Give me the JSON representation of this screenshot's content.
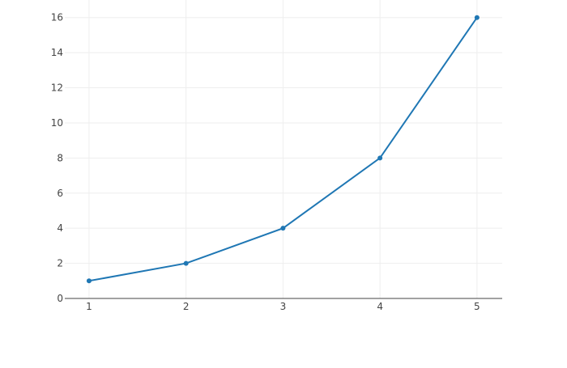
{
  "chart_data": {
    "type": "line",
    "x": [
      1,
      2,
      3,
      4,
      5
    ],
    "series": [
      {
        "values": [
          1,
          2,
          4,
          8,
          16
        ],
        "color": "#1f77b4",
        "mode": "lines+markers"
      }
    ],
    "title": "",
    "xlabel": "",
    "ylabel": "",
    "xlim": [
      0.75,
      5.26
    ],
    "ylim": [
      0,
      17
    ],
    "xticks": [
      1,
      2,
      3,
      4,
      5
    ],
    "yticks": [
      0,
      2,
      4,
      6,
      8,
      10,
      12,
      14,
      16
    ],
    "grid": true,
    "gridColor": "#eeeeee",
    "zerolineColor": "#444444"
  }
}
